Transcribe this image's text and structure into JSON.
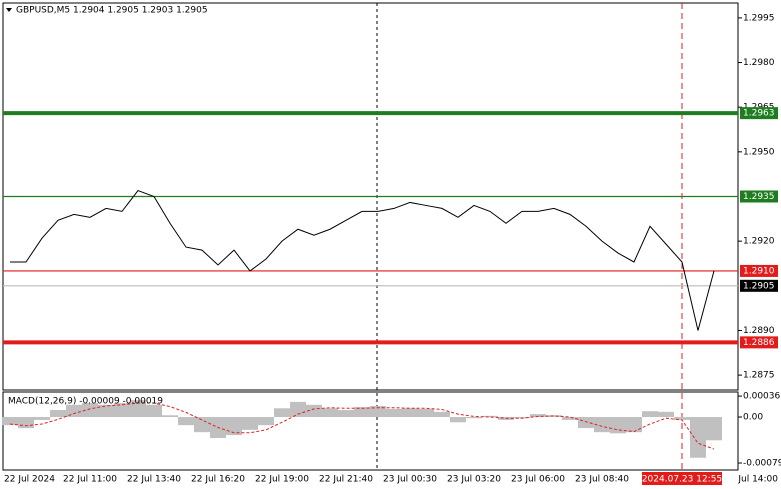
{
  "chart_data": [
    {
      "type": "line",
      "title": "GBPUSD,M5  1.2904 1.2905 1.2903 1.2905",
      "color": "#000000",
      "categories": [
        "22 Jul 2024",
        null,
        null,
        null,
        null,
        "22 Jul 11:00",
        null,
        null,
        null,
        "22 Jul 13:40",
        null,
        null,
        null,
        "22 Jul 16:20",
        null,
        null,
        null,
        "22 Jul 19:00",
        null,
        null,
        null,
        "22 Jul 21:40",
        null,
        null,
        null,
        "23 Jul 00:30",
        null,
        null,
        null,
        "23 Jul 03:20",
        null,
        null,
        null,
        "23 Jul 06:00",
        null,
        null,
        null,
        "23 Jul 08:40",
        null,
        null,
        null,
        null,
        "2024.07.23 12:55",
        null,
        null,
        "Jul 14:00"
      ],
      "values": [
        1.2913,
        1.2913,
        1.2921,
        1.2927,
        1.2929,
        1.2928,
        1.2931,
        1.293,
        1.2937,
        1.2935,
        1.2926,
        1.2918,
        1.2917,
        1.2912,
        1.2917,
        1.291,
        1.2914,
        1.292,
        1.2924,
        1.2922,
        1.2924,
        1.2927,
        1.293,
        1.293,
        1.2931,
        1.2933,
        1.2932,
        1.2931,
        1.2928,
        1.2932,
        1.293,
        1.2926,
        1.293,
        1.293,
        1.2931,
        1.2929,
        1.2925,
        1.292,
        1.2916,
        1.2913,
        1.2925,
        1.2919,
        1.2913,
        1.289,
        1.291,
        null
      ],
      "ylim": [
        1.287,
        1.3
      ],
      "yticks": [
        1.2995,
        {
          "value": 1.298,
          "label": "1.2980"
        },
        1.2965,
        {
          "value": 1.295,
          "label": "1.2950"
        },
        {
          "value": 1.292,
          "label": "1.2920"
        },
        {
          "value": 1.289,
          "label": "1.2890"
        },
        1.2875
      ],
      "levels": [
        {
          "value": 1.2963,
          "color": "#1e7d1e"
        },
        {
          "value": 1.2935,
          "color": "#1e7d1e"
        },
        {
          "value": 1.291,
          "label": "1.2910",
          "color": "#e21b1b"
        },
        {
          "value": 1.2905,
          "color": "#000000"
        },
        {
          "value": 1.2886,
          "color": "#e21b1b"
        }
      ]
    },
    {
      "type": "macd",
      "title": "MACD(12,26,9) -0.00009 -0.00019",
      "color": "#c0c0c0",
      "signal_color": "#e02020",
      "values": [
        -0.00014,
        -0.00019,
        -5e-05,
        0.00012,
        0.00021,
        0.00024,
        0.00021,
        0.00024,
        0.00029,
        0.00021,
        3e-05,
        -0.00014,
        -0.00026,
        -0.00036,
        -0.00031,
        -0.00022,
        -0.00014,
        0.00015,
        0.00026,
        0.00021,
        0.00015,
        0.00012,
        0.00017,
        0.00019,
        0.00014,
        0.00015,
        0.00014,
        9e-05,
        -9e-05,
        -2e-05,
        2e-05,
        -5e-05,
        -2e-05,
        5e-05,
        3e-05,
        -5e-05,
        -0.00019,
        -0.00026,
        -0.00028,
        -0.00026,
        0.0001,
        9e-05,
        -5e-05,
        -0.0007,
        -0.0004,
        null
      ],
      "signal": [
        -0.00012,
        -0.00015,
        -0.00012,
        -4e-05,
        6e-05,
        0.00014,
        0.00019,
        0.00021,
        0.00024,
        0.00024,
        0.00018,
        8e-05,
        -5e-05,
        -0.00018,
        -0.00027,
        -0.00027,
        -0.00022,
        -9e-05,
        5e-05,
        0.00014,
        0.00016,
        0.00015,
        0.00015,
        0.00016,
        0.00016,
        0.00015,
        0.00015,
        0.00013,
        5e-05,
        1e-05,
        0,
        -2e-05,
        -2e-05,
        1e-05,
        2e-05,
        0,
        -8e-05,
        -0.00016,
        -0.00022,
        -0.00025,
        -0.00012,
        -2e-05,
        -5e-05,
        -0.00045,
        -0.00055,
        null
      ],
      "ylim": [
        -0.00091,
        0.00043
      ],
      "yticks": [
        0.00036,
        {
          "value": 0,
          "label": "0.00"
        },
        -0.00079
      ]
    }
  ]
}
